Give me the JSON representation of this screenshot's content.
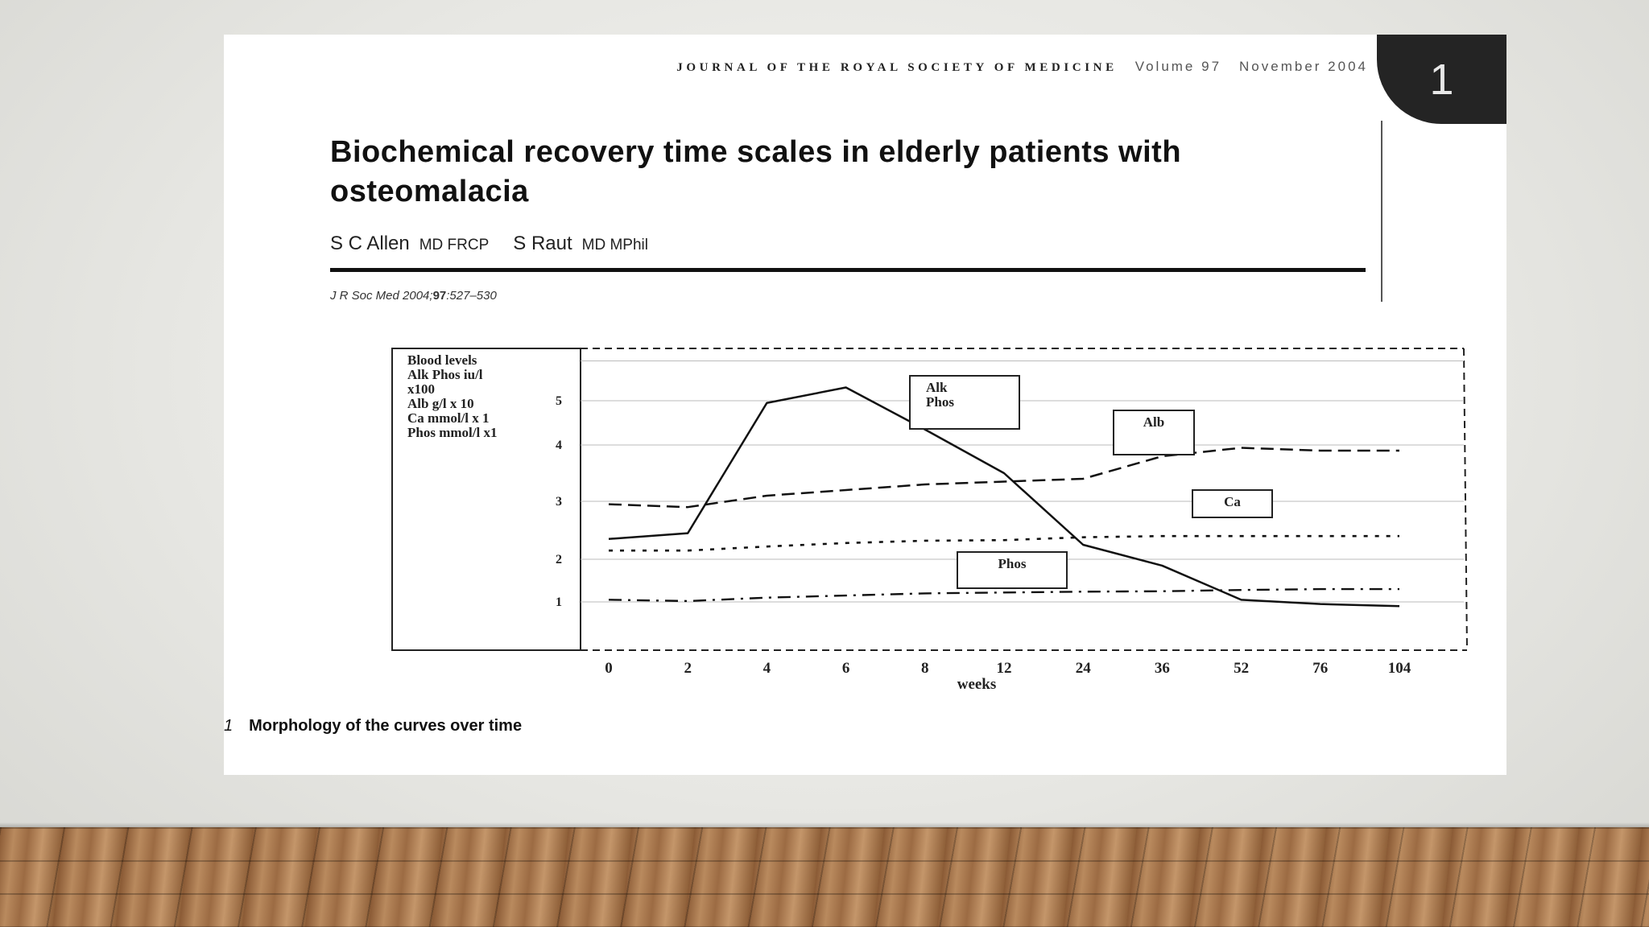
{
  "journal": {
    "name": "JOURNAL OF THE ROYAL SOCIETY OF MEDICINE",
    "volume": "Volume 97",
    "date": "November 2004"
  },
  "slide_number": "1",
  "article": {
    "title": "Biochemical recovery time scales in elderly patients with osteomalacia",
    "authors": [
      {
        "name": "S C Allen",
        "degrees": "MD FRCP"
      },
      {
        "name": "S Raut",
        "degrees": "MD MPhil"
      }
    ],
    "citation_prefix": "J R Soc Med 2004;",
    "citation_volume": "97",
    "citation_pages": ":527–530"
  },
  "figure_caption": {
    "number": "1",
    "text": "Morphology of the curves over time"
  },
  "chart_data": {
    "type": "line",
    "ylabel_lines": [
      "Blood levels",
      "Alk Phos iu/l",
      "x100",
      "Alb g/l  x 10",
      "Ca mmol/l x 1",
      "Phos mmol/l x1"
    ],
    "xlabel": "weeks",
    "categories": [
      "0",
      "2",
      "4",
      "6",
      "8",
      "12",
      "24",
      "36",
      "52",
      "76",
      "104"
    ],
    "y_ticks": [
      1,
      2,
      3,
      4,
      5
    ],
    "ylim": [
      0,
      6
    ],
    "grid": true,
    "series": [
      {
        "name": "Alk Phos",
        "style": "solid",
        "values": [
          2.35,
          2.45,
          4.95,
          5.3,
          4.35,
          3.5,
          2.25,
          1.85,
          1.05,
          0.95,
          0.9
        ]
      },
      {
        "name": "Alb",
        "style": "dashed",
        "values": [
          2.95,
          2.9,
          3.1,
          3.2,
          3.3,
          3.35,
          3.4,
          3.8,
          3.95,
          3.9,
          3.9
        ]
      },
      {
        "name": "Ca",
        "style": "dotted",
        "values": [
          2.15,
          2.15,
          2.22,
          2.28,
          2.32,
          2.33,
          2.38,
          2.4,
          2.4,
          2.4,
          2.4
        ]
      },
      {
        "name": "Phos",
        "style": "dashdot",
        "values": [
          1.05,
          1.02,
          1.1,
          1.15,
          1.2,
          1.22,
          1.24,
          1.25,
          1.28,
          1.3,
          1.3
        ]
      }
    ]
  }
}
